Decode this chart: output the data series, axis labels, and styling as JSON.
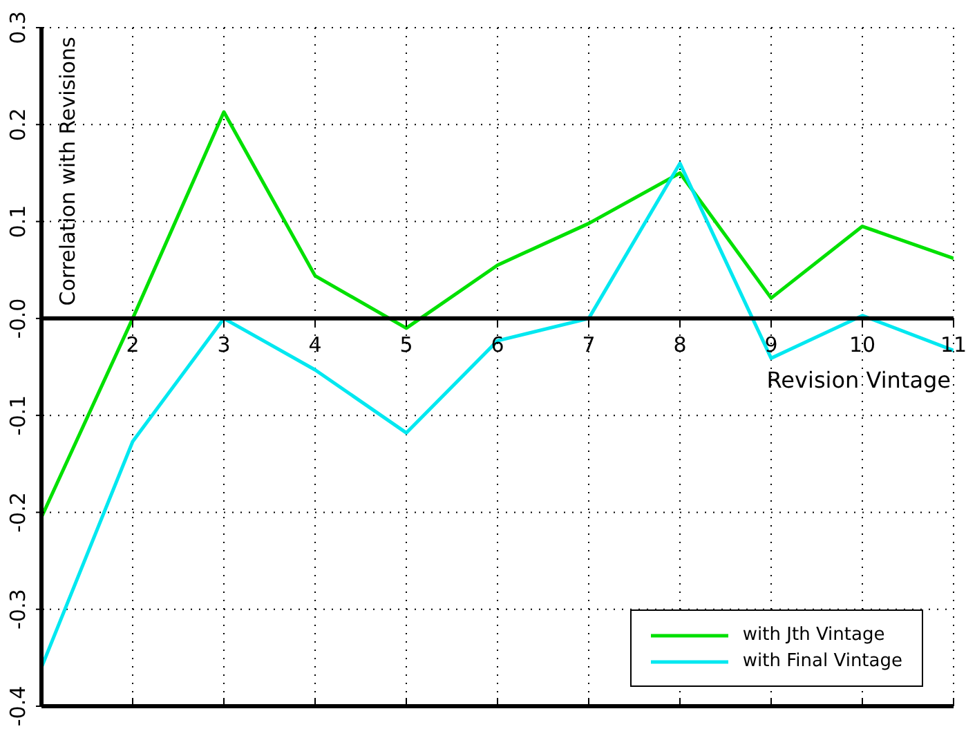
{
  "chart_data": {
    "type": "line",
    "xlabel": "Revision Vintage",
    "ylabel": "Correlation with Revisions",
    "x": [
      1,
      2,
      3,
      4,
      5,
      6,
      7,
      8,
      9,
      10,
      11
    ],
    "series": [
      {
        "name": "with Jth Vintage",
        "color": "#00e000",
        "values": [
          -0.205,
          0.0,
          0.213,
          0.044,
          -0.01,
          0.055,
          0.098,
          0.15,
          0.021,
          0.095,
          0.062
        ]
      },
      {
        "name": "with Final Vintage",
        "color": "#00e8f0",
        "values": [
          -0.36,
          -0.127,
          0.0,
          -0.053,
          -0.118,
          -0.023,
          0.0,
          0.16,
          -0.041,
          0.003,
          -0.033
        ]
      }
    ],
    "xlim": [
      1,
      11
    ],
    "xticks": [
      {
        "value": 1,
        "label": null
      },
      2,
      3,
      4,
      5,
      6,
      7,
      8,
      9,
      10,
      11
    ],
    "ylim": [
      -0.4,
      0.3
    ],
    "yticks": [
      -0.4,
      -0.3,
      -0.2,
      -0.1,
      {
        "value": 0,
        "label": "-0.0"
      },
      0.1,
      0.2,
      0.3
    ],
    "grid": true,
    "legend": "bottom right",
    "marker": "none",
    "line_style": "solid"
  }
}
